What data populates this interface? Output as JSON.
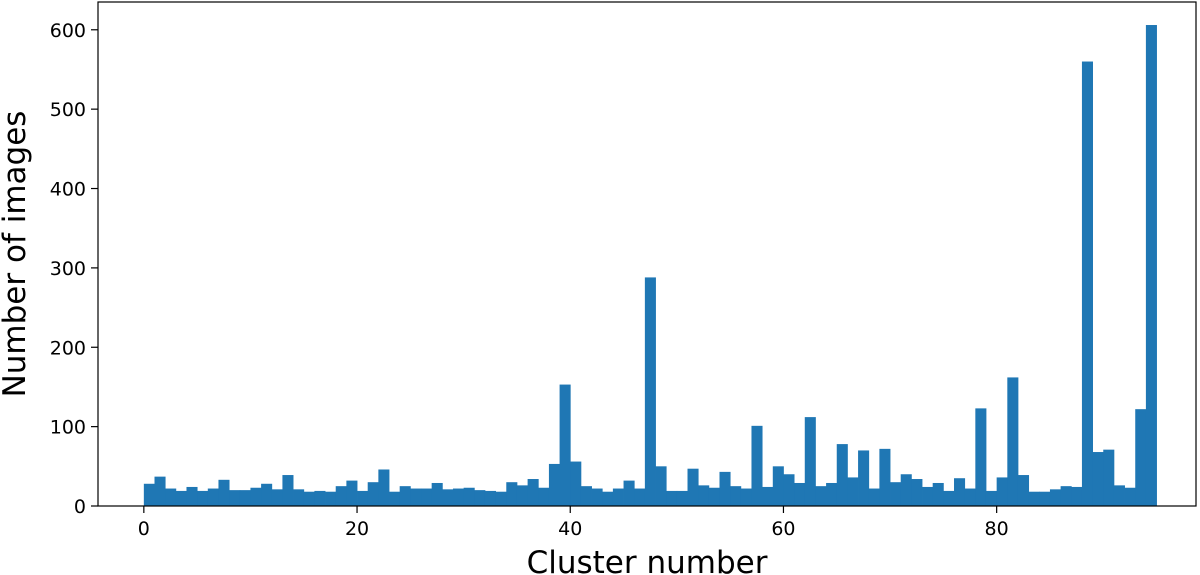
{
  "chart_data": {
    "type": "bar",
    "title": "",
    "xlabel": "Cluster number",
    "ylabel": "Number of images",
    "xlim": [
      -4.3,
      98.7
    ],
    "ylim": [
      0,
      635
    ],
    "xticks": [
      0,
      20,
      40,
      60,
      80
    ],
    "yticks": [
      0,
      100,
      200,
      300,
      400,
      500,
      600
    ],
    "grid": false,
    "bar_color": "#1f77b4",
    "categories": [
      0,
      1,
      2,
      3,
      4,
      5,
      6,
      7,
      8,
      9,
      10,
      11,
      12,
      13,
      14,
      15,
      16,
      17,
      18,
      19,
      20,
      21,
      22,
      23,
      24,
      25,
      26,
      27,
      28,
      29,
      30,
      31,
      32,
      33,
      34,
      35,
      36,
      37,
      38,
      39,
      40,
      41,
      42,
      43,
      44,
      45,
      46,
      47,
      48,
      49,
      50,
      51,
      52,
      53,
      54,
      55,
      56,
      57,
      58,
      59,
      60,
      61,
      62,
      63,
      64,
      65,
      66,
      67,
      68,
      69,
      70,
      71,
      72,
      73,
      74,
      75,
      76,
      77,
      78,
      79,
      80,
      81,
      82,
      83,
      84,
      85,
      86,
      87,
      88,
      89,
      90,
      91,
      92,
      93,
      94
    ],
    "values": [
      28,
      37,
      22,
      19,
      24,
      19,
      22,
      33,
      20,
      20,
      23,
      28,
      21,
      39,
      21,
      18,
      19,
      18,
      25,
      32,
      19,
      30,
      46,
      18,
      25,
      22,
      22,
      29,
      21,
      22,
      23,
      20,
      19,
      18,
      30,
      26,
      34,
      23,
      53,
      153,
      56,
      25,
      22,
      18,
      22,
      32,
      22,
      288,
      50,
      19,
      19,
      47,
      26,
      23,
      43,
      25,
      22,
      101,
      24,
      50,
      40,
      29,
      112,
      25,
      29,
      78,
      36,
      70,
      22,
      72,
      30,
      40,
      34,
      24,
      29,
      19,
      35,
      22,
      123,
      19,
      36,
      162,
      39,
      18,
      18,
      21,
      25,
      24,
      560,
      68,
      71,
      26,
      23,
      122,
      606
    ]
  }
}
